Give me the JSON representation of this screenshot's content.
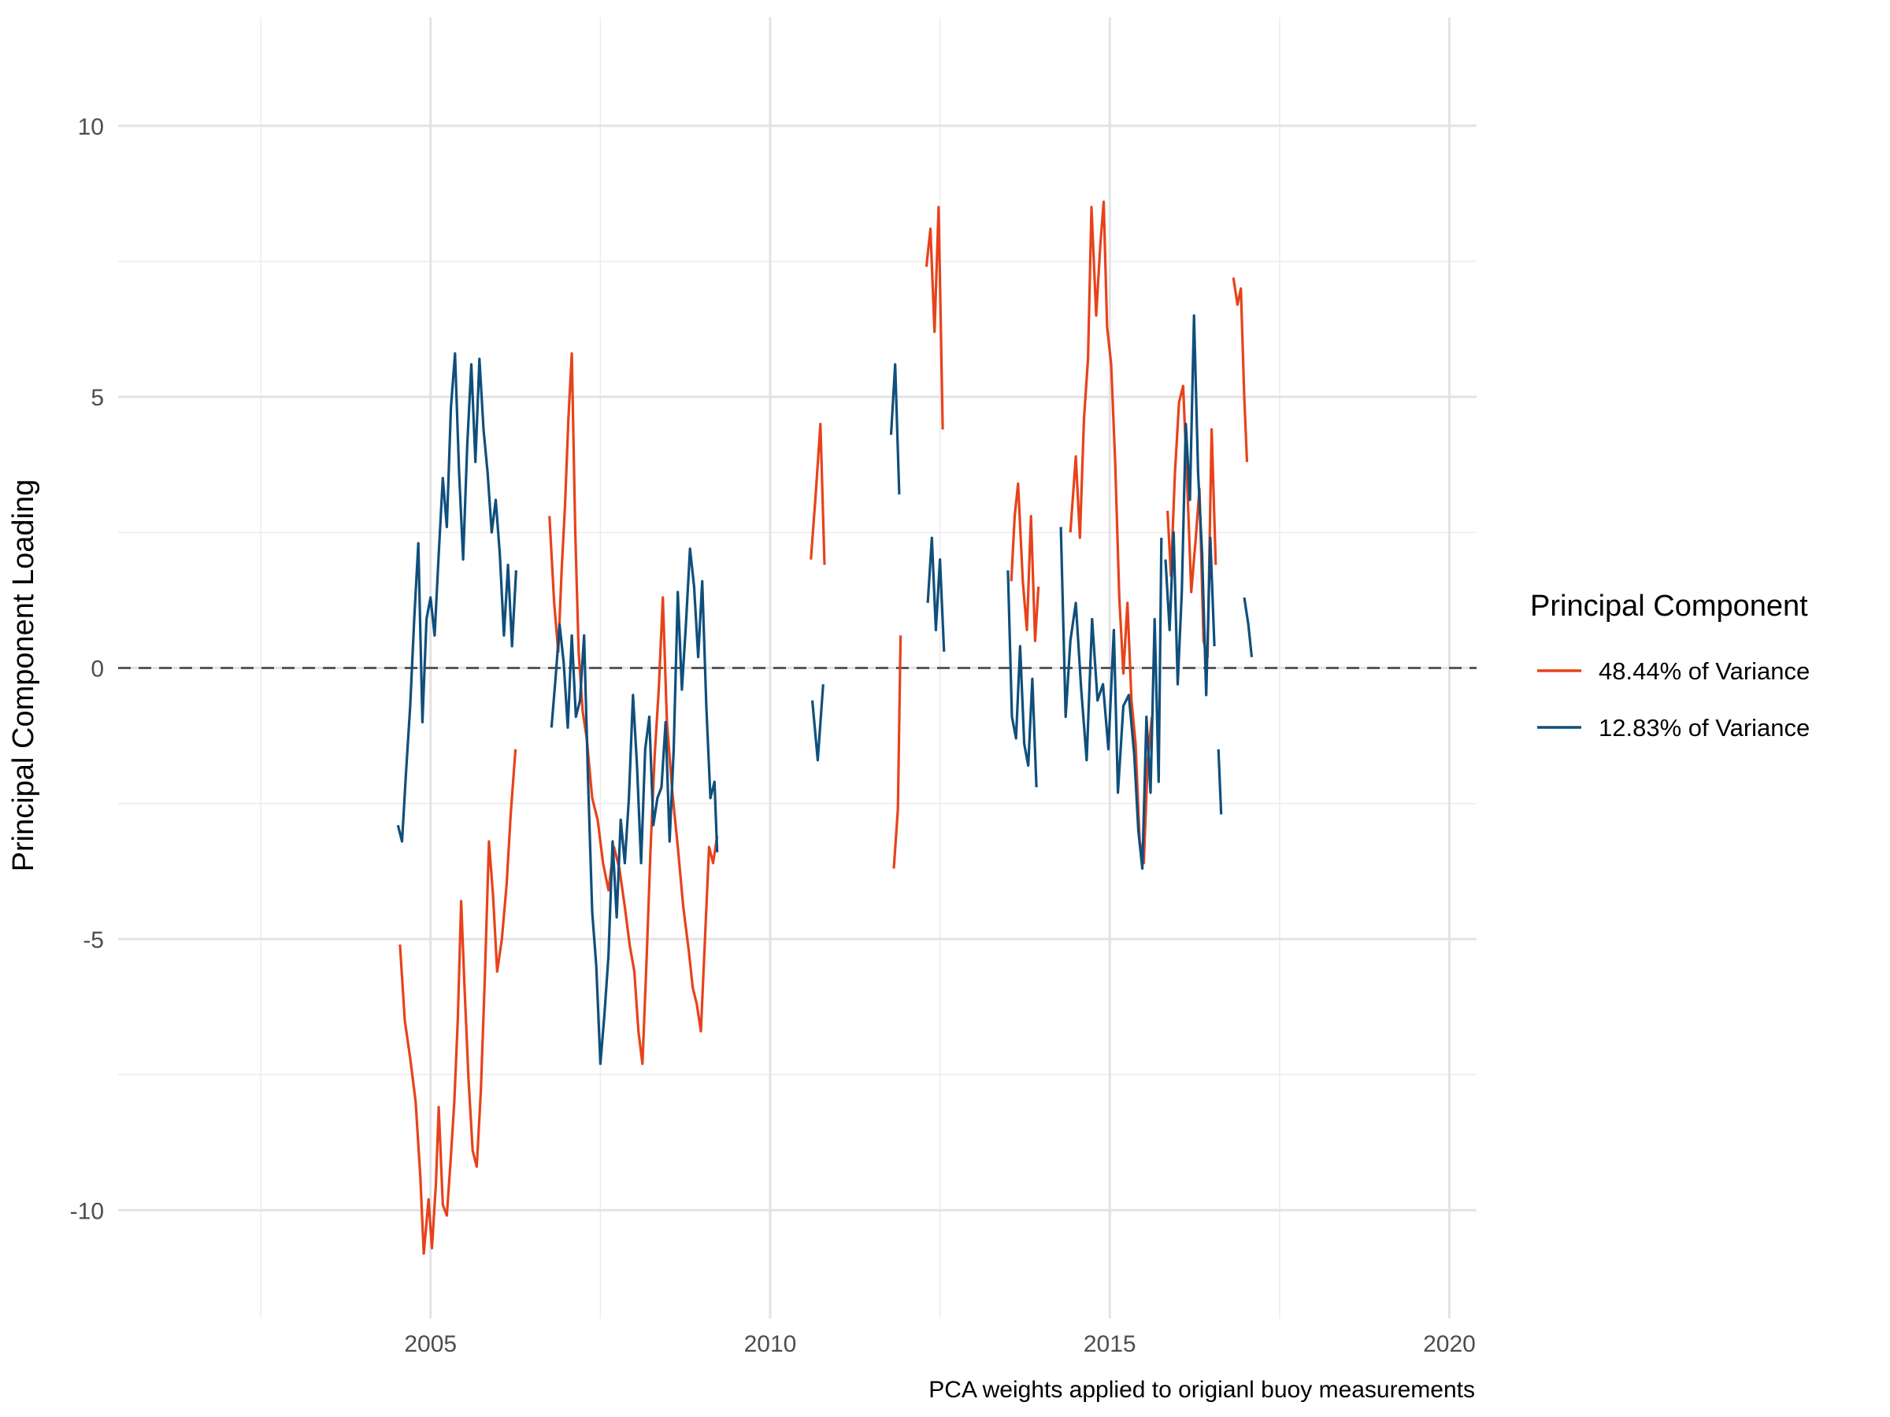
{
  "chart_data": {
    "type": "line",
    "title": "",
    "xlabel": "",
    "ylabel": "Principal Component Loading",
    "caption": "PCA weights applied to origianl buoy measurements",
    "xlim": [
      2000.4,
      2020.4
    ],
    "ylim": [
      -12,
      12
    ],
    "x_ticks": [
      2005,
      2010,
      2015,
      2020
    ],
    "y_ticks": [
      -10,
      -5,
      0,
      5,
      10
    ],
    "x_tick_labels": [
      "2005",
      "2010",
      "2015",
      "2020"
    ],
    "y_tick_labels": [
      "-10",
      "-5",
      "0",
      "5",
      "10"
    ],
    "grid": true,
    "reference_line": {
      "y": 0,
      "style": "dashed",
      "color": "#595959"
    },
    "legend": {
      "title": "Principal Component",
      "position": "right"
    },
    "series": [
      {
        "name": "48.44% of Variance",
        "color": "#e8421a",
        "segments": [
          [
            [
              2004.55,
              -5.1
            ],
            [
              2004.62,
              -6.5
            ],
            [
              2004.7,
              -7.2
            ],
            [
              2004.78,
              -8.0
            ],
            [
              2004.85,
              -9.4
            ],
            [
              2004.9,
              -10.8
            ],
            [
              2004.97,
              -9.8
            ],
            [
              2005.02,
              -10.7
            ],
            [
              2005.08,
              -9.5
            ],
            [
              2005.12,
              -8.1
            ],
            [
              2005.18,
              -9.9
            ],
            [
              2005.24,
              -10.1
            ],
            [
              2005.3,
              -9.0
            ],
            [
              2005.35,
              -8.0
            ],
            [
              2005.4,
              -6.5
            ],
            [
              2005.45,
              -4.3
            ],
            [
              2005.5,
              -5.9
            ],
            [
              2005.56,
              -7.6
            ],
            [
              2005.62,
              -8.9
            ],
            [
              2005.68,
              -9.2
            ],
            [
              2005.74,
              -7.8
            ],
            [
              2005.8,
              -5.7
            ],
            [
              2005.86,
              -3.2
            ],
            [
              2005.92,
              -4.2
            ],
            [
              2005.98,
              -5.6
            ],
            [
              2006.05,
              -5.0
            ],
            [
              2006.12,
              -4.0
            ],
            [
              2006.18,
              -2.7
            ],
            [
              2006.25,
              -1.5
            ]
          ],
          [
            [
              2006.75,
              2.8
            ],
            [
              2006.82,
              1.2
            ],
            [
              2006.88,
              0.3
            ],
            [
              2006.93,
              1.8
            ],
            [
              2006.98,
              3.0
            ],
            [
              2007.03,
              4.6
            ],
            [
              2007.08,
              5.8
            ],
            [
              2007.13,
              2.5
            ],
            [
              2007.18,
              0.3
            ],
            [
              2007.24,
              -0.8
            ],
            [
              2007.3,
              -1.3
            ],
            [
              2007.38,
              -2.4
            ],
            [
              2007.46,
              -2.8
            ],
            [
              2007.54,
              -3.6
            ],
            [
              2007.62,
              -4.1
            ],
            [
              2007.7,
              -3.3
            ],
            [
              2007.78,
              -3.7
            ],
            [
              2007.86,
              -4.4
            ],
            [
              2007.93,
              -5.1
            ],
            [
              2008.0,
              -5.6
            ],
            [
              2008.06,
              -6.7
            ],
            [
              2008.12,
              -7.3
            ],
            [
              2008.18,
              -5.4
            ],
            [
              2008.24,
              -3.3
            ],
            [
              2008.3,
              -1.6
            ],
            [
              2008.36,
              -0.4
            ],
            [
              2008.42,
              1.3
            ],
            [
              2008.48,
              -1.0
            ],
            [
              2008.56,
              -2.3
            ],
            [
              2008.64,
              -3.3
            ],
            [
              2008.72,
              -4.4
            ],
            [
              2008.8,
              -5.2
            ],
            [
              2008.86,
              -5.9
            ],
            [
              2008.92,
              -6.2
            ],
            [
              2008.98,
              -6.7
            ],
            [
              2009.04,
              -5.0
            ],
            [
              2009.1,
              -3.3
            ],
            [
              2009.16,
              -3.6
            ],
            [
              2009.22,
              -3.1
            ]
          ],
          [
            [
              2010.6,
              2.0
            ],
            [
              2010.67,
              3.2
            ],
            [
              2010.74,
              4.5
            ],
            [
              2010.8,
              1.9
            ]
          ],
          [
            [
              2011.82,
              -3.7
            ],
            [
              2011.88,
              -2.6
            ],
            [
              2011.92,
              0.6
            ]
          ],
          [
            [
              2012.3,
              7.4
            ],
            [
              2012.36,
              8.1
            ],
            [
              2012.42,
              6.2
            ],
            [
              2012.48,
              8.5
            ],
            [
              2012.54,
              4.4
            ]
          ],
          [
            [
              2013.55,
              1.6
            ],
            [
              2013.6,
              2.8
            ],
            [
              2013.65,
              3.4
            ],
            [
              2013.72,
              1.6
            ],
            [
              2013.78,
              0.7
            ],
            [
              2013.84,
              2.8
            ],
            [
              2013.9,
              0.5
            ],
            [
              2013.95,
              1.5
            ]
          ],
          [
            [
              2014.42,
              2.5
            ],
            [
              2014.5,
              3.9
            ],
            [
              2014.56,
              2.4
            ],
            [
              2014.62,
              4.6
            ],
            [
              2014.68,
              5.7
            ],
            [
              2014.73,
              8.5
            ],
            [
              2014.8,
              6.5
            ],
            [
              2014.86,
              7.8
            ],
            [
              2014.91,
              8.6
            ],
            [
              2014.96,
              6.3
            ],
            [
              2015.02,
              5.6
            ],
            [
              2015.08,
              3.8
            ],
            [
              2015.14,
              1.3
            ],
            [
              2015.2,
              -0.1
            ],
            [
              2015.26,
              1.2
            ],
            [
              2015.32,
              -0.6
            ],
            [
              2015.38,
              -1.4
            ],
            [
              2015.44,
              -3.2
            ],
            [
              2015.5,
              -3.6
            ],
            [
              2015.56,
              -1.7
            ],
            [
              2015.62,
              -0.9
            ]
          ],
          [
            [
              2015.85,
              2.9
            ],
            [
              2015.9,
              1.7
            ],
            [
              2015.96,
              3.6
            ],
            [
              2016.02,
              4.9
            ],
            [
              2016.08,
              5.2
            ],
            [
              2016.14,
              3.4
            ],
            [
              2016.2,
              1.4
            ],
            [
              2016.26,
              2.3
            ],
            [
              2016.32,
              3.3
            ],
            [
              2016.38,
              0.5
            ],
            [
              2016.44,
              0.2
            ],
            [
              2016.5,
              4.4
            ],
            [
              2016.56,
              1.9
            ]
          ],
          [
            [
              2016.82,
              7.2
            ],
            [
              2016.88,
              6.7
            ],
            [
              2016.93,
              7.0
            ],
            [
              2016.98,
              5.0
            ],
            [
              2017.02,
              3.8
            ]
          ]
        ]
      },
      {
        "name": "12.83% of Variance",
        "color": "#0f4f7c",
        "segments": [
          [
            [
              2004.52,
              -2.9
            ],
            [
              2004.58,
              -3.2
            ],
            [
              2004.64,
              -1.9
            ],
            [
              2004.7,
              -0.7
            ],
            [
              2004.76,
              0.9
            ],
            [
              2004.82,
              2.3
            ],
            [
              2004.88,
              -1.0
            ],
            [
              2004.94,
              0.9
            ],
            [
              2005.0,
              1.3
            ],
            [
              2005.06,
              0.6
            ],
            [
              2005.12,
              2.1
            ],
            [
              2005.18,
              3.5
            ],
            [
              2005.24,
              2.6
            ],
            [
              2005.3,
              4.8
            ],
            [
              2005.36,
              5.8
            ],
            [
              2005.42,
              3.6
            ],
            [
              2005.48,
              2.0
            ],
            [
              2005.54,
              4.1
            ],
            [
              2005.6,
              5.6
            ],
            [
              2005.66,
              3.8
            ],
            [
              2005.72,
              5.7
            ],
            [
              2005.78,
              4.4
            ],
            [
              2005.84,
              3.6
            ],
            [
              2005.9,
              2.5
            ],
            [
              2005.96,
              3.1
            ],
            [
              2006.02,
              2.1
            ],
            [
              2006.08,
              0.6
            ],
            [
              2006.14,
              1.9
            ],
            [
              2006.2,
              0.4
            ],
            [
              2006.26,
              1.8
            ]
          ],
          [
            [
              2006.78,
              -1.1
            ],
            [
              2006.84,
              -0.2
            ],
            [
              2006.9,
              0.8
            ],
            [
              2006.96,
              0.1
            ],
            [
              2007.02,
              -1.1
            ],
            [
              2007.08,
              0.6
            ],
            [
              2007.14,
              -0.9
            ],
            [
              2007.2,
              -0.6
            ],
            [
              2007.26,
              0.6
            ],
            [
              2007.32,
              -2.1
            ],
            [
              2007.38,
              -4.5
            ],
            [
              2007.44,
              -5.5
            ],
            [
              2007.5,
              -7.3
            ],
            [
              2007.56,
              -6.4
            ],
            [
              2007.62,
              -5.3
            ],
            [
              2007.68,
              -3.2
            ],
            [
              2007.74,
              -4.6
            ],
            [
              2007.8,
              -2.8
            ],
            [
              2007.86,
              -3.6
            ],
            [
              2007.92,
              -2.4
            ],
            [
              2007.98,
              -0.5
            ],
            [
              2008.04,
              -1.8
            ],
            [
              2008.1,
              -3.6
            ],
            [
              2008.16,
              -1.5
            ],
            [
              2008.22,
              -0.9
            ],
            [
              2008.28,
              -2.9
            ],
            [
              2008.34,
              -2.4
            ],
            [
              2008.4,
              -2.2
            ],
            [
              2008.46,
              -1.0
            ],
            [
              2008.52,
              -3.2
            ],
            [
              2008.58,
              -1.5
            ],
            [
              2008.64,
              1.4
            ],
            [
              2008.7,
              -0.4
            ],
            [
              2008.76,
              0.8
            ],
            [
              2008.82,
              2.2
            ],
            [
              2008.88,
              1.5
            ],
            [
              2008.94,
              0.2
            ],
            [
              2009.0,
              1.6
            ],
            [
              2009.06,
              -0.7
            ],
            [
              2009.12,
              -2.4
            ],
            [
              2009.18,
              -2.1
            ],
            [
              2009.22,
              -3.4
            ]
          ],
          [
            [
              2010.62,
              -0.6
            ],
            [
              2010.7,
              -1.7
            ],
            [
              2010.78,
              -0.3
            ]
          ],
          [
            [
              2011.78,
              4.3
            ],
            [
              2011.84,
              5.6
            ],
            [
              2011.9,
              3.2
            ]
          ],
          [
            [
              2012.32,
              1.2
            ],
            [
              2012.38,
              2.4
            ],
            [
              2012.44,
              0.7
            ],
            [
              2012.5,
              2.0
            ],
            [
              2012.56,
              0.3
            ]
          ],
          [
            [
              2013.5,
              1.8
            ],
            [
              2013.56,
              -0.9
            ],
            [
              2013.62,
              -1.3
            ],
            [
              2013.68,
              0.4
            ],
            [
              2013.74,
              -1.4
            ],
            [
              2013.8,
              -1.8
            ],
            [
              2013.86,
              -0.2
            ],
            [
              2013.92,
              -2.2
            ]
          ],
          [
            [
              2014.28,
              2.6
            ],
            [
              2014.35,
              -0.9
            ],
            [
              2014.42,
              0.5
            ],
            [
              2014.5,
              1.2
            ],
            [
              2014.58,
              -0.4
            ],
            [
              2014.66,
              -1.7
            ],
            [
              2014.74,
              0.9
            ],
            [
              2014.82,
              -0.6
            ],
            [
              2014.9,
              -0.3
            ],
            [
              2014.98,
              -1.5
            ],
            [
              2015.06,
              0.7
            ],
            [
              2015.12,
              -2.3
            ],
            [
              2015.2,
              -0.7
            ],
            [
              2015.28,
              -0.5
            ],
            [
              2015.36,
              -1.6
            ],
            [
              2015.42,
              -3.0
            ],
            [
              2015.48,
              -3.7
            ],
            [
              2015.54,
              -0.9
            ],
            [
              2015.6,
              -2.3
            ],
            [
              2015.66,
              0.9
            ],
            [
              2015.72,
              -2.1
            ],
            [
              2015.76,
              2.4
            ]
          ],
          [
            [
              2015.82,
              2.0
            ],
            [
              2015.88,
              0.7
            ],
            [
              2015.94,
              2.5
            ],
            [
              2016.0,
              -0.3
            ],
            [
              2016.06,
              1.4
            ],
            [
              2016.12,
              4.5
            ],
            [
              2016.18,
              3.1
            ],
            [
              2016.24,
              6.5
            ],
            [
              2016.3,
              3.6
            ],
            [
              2016.36,
              2.1
            ],
            [
              2016.42,
              -0.5
            ],
            [
              2016.48,
              2.4
            ],
            [
              2016.54,
              0.4
            ]
          ],
          [
            [
              2016.6,
              -1.5
            ],
            [
              2016.64,
              -2.7
            ]
          ],
          [
            [
              2016.98,
              1.3
            ],
            [
              2017.04,
              0.8
            ],
            [
              2017.09,
              0.2
            ]
          ]
        ]
      }
    ]
  }
}
